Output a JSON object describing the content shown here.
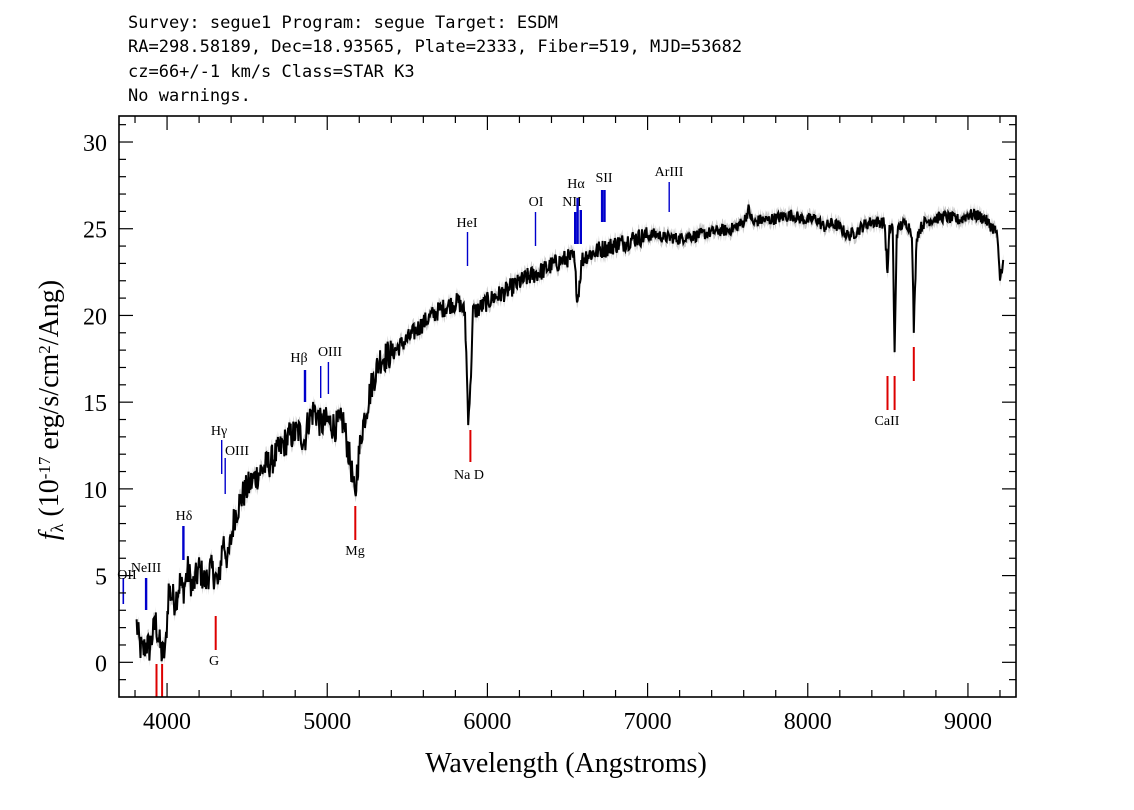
{
  "header": {
    "line1": "Survey: segue1 Program: segue Target: ESDM",
    "line2": "RA=298.58189, Dec=18.93565, Plate=2333, Fiber=519, MJD=53682",
    "line3": "cz=66+/-1 km/s Class=STAR K3",
    "line4": "No warnings."
  },
  "chart_data": {
    "type": "line",
    "title": "",
    "xlabel": "Wavelength (Angstroms)",
    "ylabel": "f_λ (10^-17 erg/s/cm^2/Ang)",
    "xlim": [
      3700,
      9300
    ],
    "ylim": [
      -2,
      31.5
    ],
    "xticks": [
      4000,
      5000,
      6000,
      7000,
      8000,
      9000
    ],
    "yticks": [
      0,
      5,
      10,
      15,
      20,
      25,
      30
    ],
    "grid": false,
    "colors": {
      "spectrum": "#000000",
      "error": "#bbbbbb",
      "emission": "#0000cc",
      "absorption": "#dd0000"
    },
    "series": [
      {
        "style": "spectrum",
        "x": [
          3810,
          3830,
          3850,
          3870,
          3890,
          3910,
          3930,
          3950,
          3970,
          3990,
          4010,
          4050,
          4080,
          4100,
          4130,
          4160,
          4200,
          4240,
          4270,
          4300,
          4320,
          4350,
          4380,
          4420,
          4470,
          4520,
          4580,
          4640,
          4700,
          4760,
          4820,
          4860,
          4880,
          4920,
          4960,
          5000,
          5050,
          5100,
          5150,
          5175,
          5185,
          5220,
          5280,
          5330,
          5400,
          5460,
          5520,
          5580,
          5640,
          5700,
          5760,
          5820,
          5860,
          5880,
          5893,
          5910,
          5950,
          6000,
          6050,
          6100,
          6150,
          6200,
          6250,
          6300,
          6350,
          6400,
          6450,
          6500,
          6540,
          6563,
          6590,
          6620,
          6660,
          6700,
          6750,
          6800,
          6850,
          6900,
          6950,
          7000,
          7050,
          7100,
          7150,
          7200,
          7250,
          7300,
          7350,
          7400,
          7450,
          7500,
          7550,
          7600,
          7630,
          7660,
          7700,
          7750,
          7800,
          7850,
          7900,
          7950,
          8000,
          8050,
          8100,
          8150,
          8200,
          8250,
          8300,
          8350,
          8400,
          8450,
          8480,
          8498,
          8510,
          8530,
          8542,
          8555,
          8580,
          8620,
          8650,
          8662,
          8680,
          8720,
          8760,
          8800,
          8850,
          8900,
          8950,
          9000,
          9050,
          9100,
          9130,
          9160,
          9180,
          9200,
          9220
        ],
        "y": [
          2.2,
          0.9,
          0.6,
          1.1,
          0.8,
          1.6,
          2.3,
          1.2,
          0.4,
          0.7,
          4.2,
          3.5,
          4.6,
          4.1,
          5.3,
          4.3,
          5.4,
          4.6,
          5.4,
          5.0,
          4.4,
          7.1,
          5.8,
          8.4,
          9.6,
          10.3,
          11.0,
          11.5,
          12.2,
          13.0,
          13.3,
          12.8,
          13.9,
          14.6,
          13.7,
          13.9,
          13.6,
          13.9,
          11.2,
          9.2,
          11.0,
          13.6,
          16.1,
          17.5,
          17.8,
          18.3,
          18.8,
          19.4,
          19.9,
          20.3,
          20.6,
          20.8,
          20.1,
          14.2,
          15.6,
          20.2,
          20.4,
          20.8,
          21.1,
          21.3,
          21.6,
          21.9,
          22.2,
          22.4,
          22.6,
          22.9,
          23.1,
          23.3,
          23.3,
          20.9,
          23.2,
          23.5,
          23.6,
          23.8,
          23.9,
          24.1,
          24.2,
          24.4,
          24.5,
          24.6,
          24.7,
          24.5,
          24.5,
          24.4,
          24.6,
          24.6,
          24.7,
          24.8,
          24.9,
          24.9,
          25.1,
          25.4,
          26.1,
          25.3,
          25.5,
          25.5,
          25.6,
          25.7,
          25.8,
          25.6,
          25.5,
          25.6,
          25.1,
          25.3,
          25.1,
          24.6,
          24.8,
          25.2,
          25.4,
          25.4,
          25.3,
          22.3,
          24.9,
          25.2,
          17.7,
          24.7,
          25.2,
          25.3,
          24.8,
          19.2,
          24.6,
          25.3,
          25.5,
          25.6,
          25.7,
          25.6,
          25.5,
          25.8,
          25.8,
          25.6,
          25.3,
          25.0,
          24.8,
          22.1,
          23.2
        ]
      }
    ],
    "emission_lines": [
      {
        "label": "OII",
        "wavelength": 3727
      },
      {
        "label": "NeIII",
        "wavelength": 3869
      },
      {
        "label": "Hδ",
        "wavelength": 4102
      },
      {
        "label": "Hγ",
        "wavelength": 4341
      },
      {
        "label": "OIII",
        "wavelength": 4363
      },
      {
        "label": "Hβ",
        "wavelength": 4861
      },
      {
        "label": "OIII",
        "wavelength": 4959
      },
      {
        "label": "",
        "wavelength": 5007
      },
      {
        "label": "HeI",
        "wavelength": 5876
      },
      {
        "label": "OI",
        "wavelength": 6300
      },
      {
        "label": "NII",
        "wavelength": 6548
      },
      {
        "label": "Hα",
        "wavelength": 6563
      },
      {
        "label": "",
        "wavelength": 6583
      },
      {
        "label": "SII",
        "wavelength": 6716
      },
      {
        "label": "",
        "wavelength": 6731
      },
      {
        "label": "ArIII",
        "wavelength": 7135
      }
    ],
    "absorption_lines": [
      {
        "label": "",
        "wavelength": 3934
      },
      {
        "label": "",
        "wavelength": 3969
      },
      {
        "label": "G",
        "wavelength": 4304
      },
      {
        "label": "Mg",
        "wavelength": 5175
      },
      {
        "label": "Na D",
        "wavelength": 5894
      },
      {
        "label": "CaII",
        "wavelength": 8498
      },
      {
        "label": "",
        "wavelength": 8542
      },
      {
        "label": "",
        "wavelength": 8662
      }
    ]
  }
}
